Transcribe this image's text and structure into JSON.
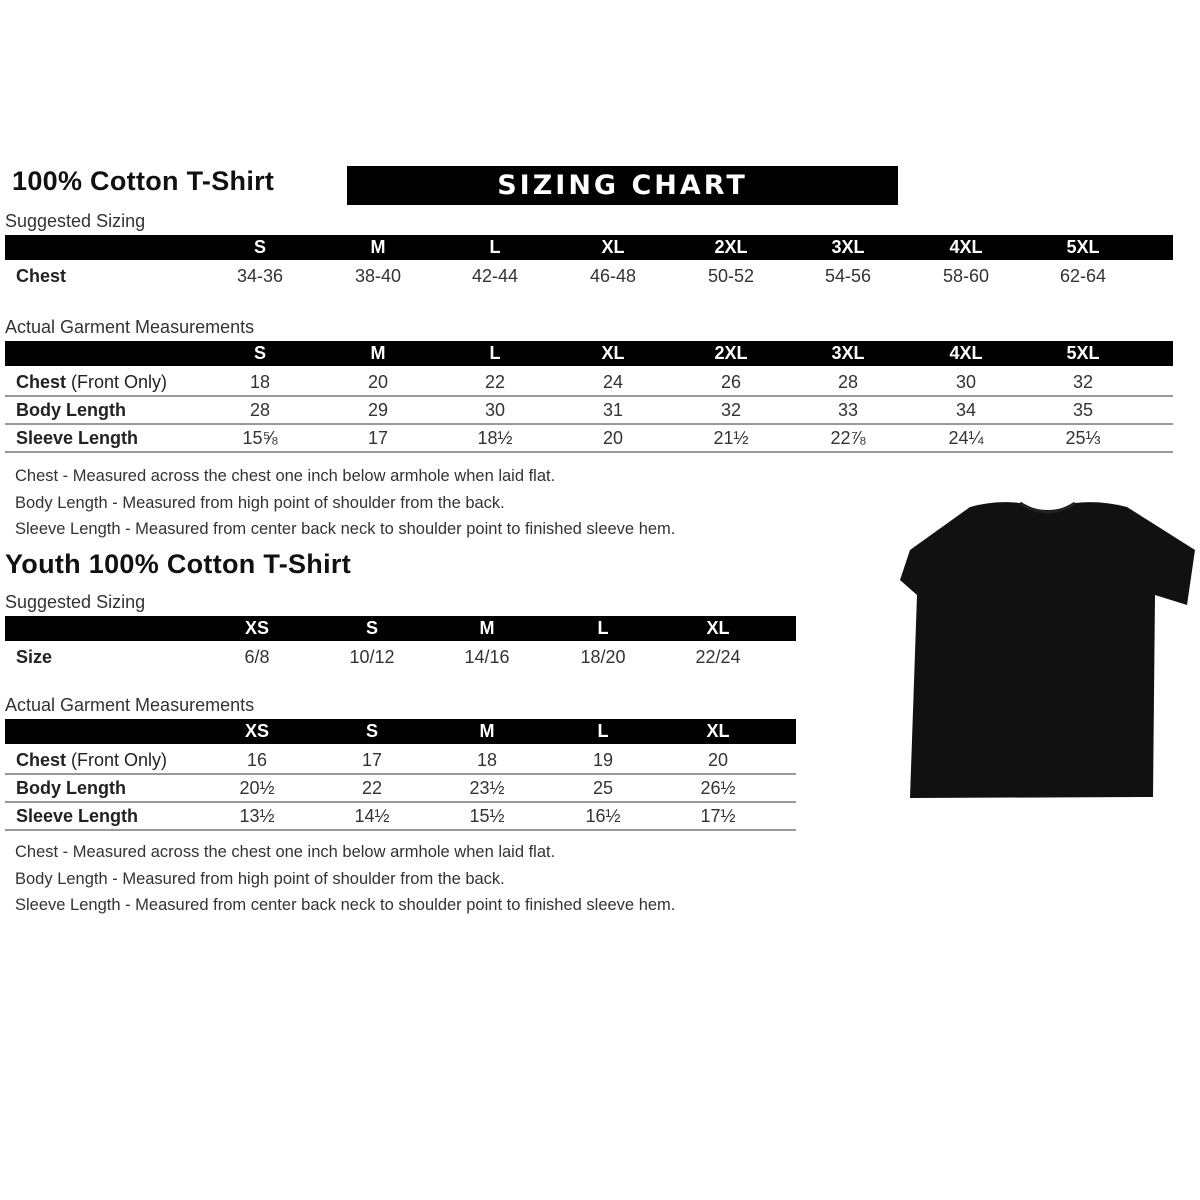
{
  "adult": {
    "title": "100% Cotton T-Shirt",
    "banner": "SIZING CHART",
    "suggested_label": "Suggested Sizing",
    "sizes": [
      "S",
      "M",
      "L",
      "XL",
      "2XL",
      "3XL",
      "4XL",
      "5XL"
    ],
    "suggested_rows": [
      {
        "label": "Chest",
        "extra": "",
        "values": [
          "34-36",
          "38-40",
          "42-44",
          "46-48",
          "50-52",
          "54-56",
          "58-60",
          "62-64"
        ]
      }
    ],
    "actual_label": "Actual Garment Measurements",
    "actual_rows": [
      {
        "label": "Chest",
        "extra": " (Front Only)",
        "values": [
          "18",
          "20",
          "22",
          "24",
          "26",
          "28",
          "30",
          "32"
        ]
      },
      {
        "label": "Body Length",
        "extra": "",
        "values": [
          "28",
          "29",
          "30",
          "31",
          "32",
          "33",
          "34",
          "35"
        ]
      },
      {
        "label": "Sleeve Length",
        "extra": "",
        "values": [
          "15⅝",
          "17",
          "18½",
          "20",
          "21½",
          "22⅞",
          "24¼",
          "25⅓"
        ]
      }
    ],
    "notes": [
      "Chest - Measured across the chest one inch below armhole when laid flat.",
      "Body Length - Measured from high point of shoulder from the back.",
      "Sleeve Length - Measured from center back neck to shoulder point to finished sleeve hem."
    ]
  },
  "youth": {
    "title": "Youth 100% Cotton T-Shirt",
    "suggested_label": "Suggested Sizing",
    "sizes": [
      "XS",
      "S",
      "M",
      "L",
      "XL"
    ],
    "suggested_rows": [
      {
        "label": "Size",
        "extra": "",
        "values": [
          "6/8",
          "10/12",
          "14/16",
          "18/20",
          "22/24"
        ]
      }
    ],
    "actual_label": "Actual Garment Measurements",
    "actual_rows": [
      {
        "label": "Chest",
        "extra": " (Front Only)",
        "values": [
          "16",
          "17",
          "18",
          "19",
          "20"
        ]
      },
      {
        "label": "Body Length",
        "extra": "",
        "values": [
          "20½",
          "22",
          "23½",
          "25",
          "26½"
        ]
      },
      {
        "label": "Sleeve Length",
        "extra": "",
        "values": [
          "13½",
          "14½",
          "15½",
          "16½",
          "17½"
        ]
      }
    ],
    "notes": [
      "Chest - Measured across the chest one inch below armhole when laid flat.",
      "Body Length - Measured from high point of shoulder from the back.",
      "Sleeve Length - Measured from center back neck to shoulder point to finished sleeve hem."
    ]
  },
  "image": {
    "icon": "tshirt-icon",
    "color": "#111111"
  }
}
